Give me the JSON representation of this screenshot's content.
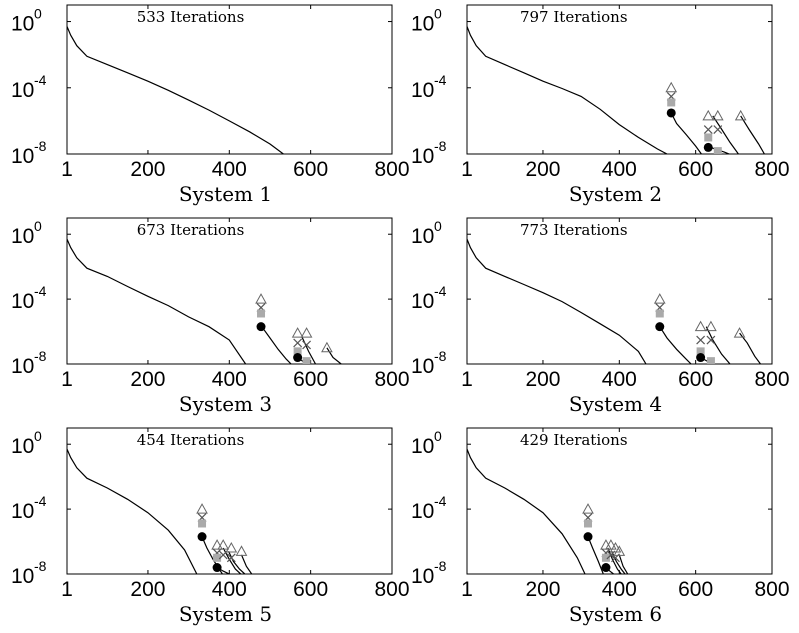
{
  "chart_data": [
    {
      "type": "line",
      "title": "533 Iterations",
      "xlabel": "System 1",
      "xlim": [
        1,
        800
      ],
      "xticks": [
        1,
        200,
        400,
        600,
        800
      ],
      "yscale": "log",
      "ylim": [
        1e-08,
        10
      ],
      "yticks": [
        {
          "base": "10",
          "exp": "0",
          "value": 1
        },
        {
          "base": "10",
          "exp": "-4",
          "value": 0.0001
        },
        {
          "base": "10",
          "exp": "-8",
          "value": 1e-08
        }
      ],
      "series": [
        {
          "x": [
            1,
            10,
            25,
            50,
            100,
            150,
            200,
            250,
            300,
            350,
            400,
            450,
            500,
            533
          ],
          "y": [
            0.5,
            0.15,
            0.035,
            0.008,
            0.0025,
            0.0008,
            0.00025,
            7e-05,
            1.8e-05,
            4.5e-06,
            1e-06,
            2.2e-07,
            4e-08,
            1e-08
          ]
        }
      ],
      "markers": []
    },
    {
      "type": "line",
      "title": "797 Iterations",
      "xlabel": "System 2",
      "xlim": [
        1,
        800
      ],
      "xticks": [
        1,
        200,
        400,
        600,
        800
      ],
      "yscale": "log",
      "ylim": [
        1e-08,
        10
      ],
      "yticks": [
        {
          "base": "10",
          "exp": "0",
          "value": 1
        },
        {
          "base": "10",
          "exp": "-4",
          "value": 0.0001
        },
        {
          "base": "10",
          "exp": "-8",
          "value": 1e-08
        }
      ],
      "series": [
        {
          "x": [
            1,
            10,
            25,
            50,
            100,
            150,
            200,
            250,
            300,
            350,
            400,
            450,
            500,
            525
          ],
          "y": [
            0.5,
            0.15,
            0.035,
            0.008,
            0.0025,
            0.0008,
            0.00025,
            9e-05,
            3e-05,
            5e-06,
            6e-07,
            1e-07,
            2e-08,
            1e-08
          ]
        },
        {
          "x": [
            536,
            550,
            575,
            600,
            615
          ],
          "y": [
            3e-06,
            7e-07,
            1.5e-07,
            3e-08,
            1e-08
          ]
        },
        {
          "x": [
            633,
            650,
            675,
            688
          ],
          "y": [
            3e-08,
            2e-08,
            1.3e-08,
            1e-08
          ]
        },
        {
          "x": [
            645,
            665,
            690,
            712
          ],
          "y": [
            2e-06,
            4e-07,
            5e-08,
            1e-08
          ]
        },
        {
          "x": [
            718,
            740,
            765,
            780
          ],
          "y": [
            2e-06,
            3e-07,
            4e-08,
            1e-08
          ]
        }
      ],
      "markers": [
        {
          "x": 536,
          "triangle": 0.0001,
          "cross": 3e-05,
          "square": 1.3e-05,
          "dot": 3e-06
        },
        {
          "x": 633,
          "triangle": 2e-06,
          "cross": 3e-07,
          "square": 1e-07,
          "dot": 2.5e-08
        },
        {
          "x": 658,
          "triangle": 2e-06,
          "cross": 3e-07,
          "square": 1.5e-08
        },
        {
          "x": 718,
          "triangle": 2e-06
        }
      ]
    },
    {
      "type": "line",
      "title": "673 Iterations",
      "xlabel": "System 3",
      "xlim": [
        1,
        800
      ],
      "xticks": [
        1,
        200,
        400,
        600,
        800
      ],
      "yscale": "log",
      "ylim": [
        1e-08,
        10
      ],
      "yticks": [
        {
          "base": "10",
          "exp": "0",
          "value": 1
        },
        {
          "base": "10",
          "exp": "-4",
          "value": 0.0001
        },
        {
          "base": "10",
          "exp": "-8",
          "value": 1e-08
        }
      ],
      "series": [
        {
          "x": [
            1,
            10,
            25,
            50,
            100,
            150,
            200,
            250,
            300,
            350,
            400,
            440
          ],
          "y": [
            0.5,
            0.15,
            0.035,
            0.008,
            0.0025,
            0.0006,
            0.00015,
            4e-05,
            8e-06,
            2e-06,
            3e-07,
            1e-08
          ]
        },
        {
          "x": [
            480,
            500,
            520,
            540,
            552
          ],
          "y": [
            2e-06,
            4e-07,
            8e-08,
            2e-08,
            1e-08
          ]
        },
        {
          "x": [
            568,
            580,
            598
          ],
          "y": [
            2.5e-08,
            1.5e-08,
            1e-08
          ]
        },
        {
          "x": [
            578,
            595,
            612
          ],
          "y": [
            5e-07,
            6e-08,
            1e-08
          ]
        },
        {
          "x": [
            640,
            655,
            675
          ],
          "y": [
            1e-07,
            2.5e-08,
            1e-08
          ]
        }
      ],
      "markers": [
        {
          "x": 478,
          "triangle": 0.0001,
          "cross": 3e-05,
          "square": 1.3e-05,
          "dot": 2e-06
        },
        {
          "x": 568,
          "triangle": 8e-07,
          "cross": 2e-07,
          "square": 6e-08,
          "dot": 2.5e-08
        },
        {
          "x": 590,
          "triangle": 8e-07,
          "cross": 1.5e-07,
          "square": 1.5e-08
        },
        {
          "x": 640,
          "triangle": 1e-07
        }
      ]
    },
    {
      "type": "line",
      "title": "773 Iterations",
      "xlabel": "System 4",
      "xlim": [
        1,
        800
      ],
      "xticks": [
        1,
        200,
        400,
        600,
        800
      ],
      "yscale": "log",
      "ylim": [
        1e-08,
        10
      ],
      "yticks": [
        {
          "base": "10",
          "exp": "0",
          "value": 1
        },
        {
          "base": "10",
          "exp": "-4",
          "value": 0.0001
        },
        {
          "base": "10",
          "exp": "-8",
          "value": 1e-08
        }
      ],
      "series": [
        {
          "x": [
            1,
            10,
            25,
            50,
            100,
            150,
            200,
            250,
            300,
            350,
            400,
            450,
            470
          ],
          "y": [
            0.5,
            0.15,
            0.035,
            0.008,
            0.0025,
            0.0008,
            0.00025,
            7e-05,
            1.5e-05,
            3e-06,
            6e-07,
            6e-08,
            1e-08
          ]
        },
        {
          "x": [
            506,
            525,
            550,
            575,
            588
          ],
          "y": [
            2e-06,
            4e-07,
            8e-08,
            2e-08,
            1e-08
          ]
        },
        {
          "x": [
            613,
            630,
            648
          ],
          "y": [
            2.5e-08,
            1.5e-08,
            1e-08
          ]
        },
        {
          "x": [
            628,
            645,
            668,
            690
          ],
          "y": [
            2e-06,
            3e-07,
            4e-08,
            1e-08
          ]
        },
        {
          "x": [
            715,
            735,
            755,
            770
          ],
          "y": [
            8e-07,
            2e-07,
            3e-08,
            1e-08
          ]
        }
      ],
      "markers": [
        {
          "x": 506,
          "triangle": 0.0001,
          "cross": 3e-05,
          "square": 1.3e-05,
          "dot": 2e-06
        },
        {
          "x": 613,
          "triangle": 2e-06,
          "cross": 3e-07,
          "square": 6e-08,
          "dot": 2.5e-08
        },
        {
          "x": 640,
          "triangle": 2e-06,
          "cross": 3e-07,
          "square": 1.5e-08
        },
        {
          "x": 715,
          "triangle": 8e-07
        }
      ]
    },
    {
      "type": "line",
      "title": "454 Iterations",
      "xlabel": "System 5",
      "xlim": [
        1,
        800
      ],
      "xticks": [
        1,
        200,
        400,
        600,
        800
      ],
      "yscale": "log",
      "ylim": [
        1e-08,
        10
      ],
      "yticks": [
        {
          "base": "10",
          "exp": "0",
          "value": 1
        },
        {
          "base": "10",
          "exp": "-4",
          "value": 0.0001
        },
        {
          "base": "10",
          "exp": "-8",
          "value": 1e-08
        }
      ],
      "series": [
        {
          "x": [
            1,
            10,
            25,
            50,
            100,
            150,
            200,
            250,
            290,
            320
          ],
          "y": [
            0.5,
            0.15,
            0.035,
            0.008,
            0.002,
            0.0004,
            6e-05,
            5e-06,
            3e-07,
            1e-08
          ]
        },
        {
          "x": [
            333,
            345,
            360,
            375,
            383
          ],
          "y": [
            2e-06,
            4e-07,
            8e-08,
            2e-08,
            1e-08
          ]
        },
        {
          "x": [
            370,
            385,
            400
          ],
          "y": [
            2.5e-08,
            1.5e-08,
            1e-08
          ]
        },
        {
          "x": [
            385,
            400,
            415,
            428
          ],
          "y": [
            4e-07,
            8e-08,
            2e-08,
            1e-08
          ]
        },
        {
          "x": [
            398,
            410,
            425,
            438
          ],
          "y": [
            2.5e-07,
            6e-08,
            2e-08,
            1e-08
          ]
        },
        {
          "x": [
            430,
            442,
            455
          ],
          "y": [
            1.5e-07,
            3e-08,
            1e-08
          ]
        }
      ],
      "markers": [
        {
          "x": 333,
          "triangle": 0.0001,
          "cross": 3e-05,
          "square": 1.3e-05,
          "dot": 2e-06
        },
        {
          "x": 370,
          "triangle": 6e-07,
          "cross": 2e-07,
          "square": 1e-07,
          "dot": 2.5e-08
        },
        {
          "x": 385,
          "triangle": 6e-07,
          "cross": 1.5e-07
        },
        {
          "x": 405,
          "triangle": 4e-07,
          "cross": 1e-07
        },
        {
          "x": 430,
          "triangle": 2.5e-07
        }
      ]
    },
    {
      "type": "line",
      "title": "429 Iterations",
      "xlabel": "System 6",
      "xlim": [
        1,
        800
      ],
      "xticks": [
        1,
        200,
        400,
        600,
        800
      ],
      "yscale": "log",
      "ylim": [
        1e-08,
        10
      ],
      "yticks": [
        {
          "base": "10",
          "exp": "0",
          "value": 1
        },
        {
          "base": "10",
          "exp": "-4",
          "value": 0.0001
        },
        {
          "base": "10",
          "exp": "-8",
          "value": 1e-08
        }
      ],
      "series": [
        {
          "x": [
            1,
            10,
            25,
            50,
            100,
            150,
            200,
            250,
            290,
            310
          ],
          "y": [
            0.5,
            0.15,
            0.035,
            0.008,
            0.002,
            0.0004,
            6e-05,
            3e-06,
            1e-07,
            1e-08
          ]
        },
        {
          "x": [
            318,
            330,
            345,
            358
          ],
          "y": [
            2e-06,
            4e-07,
            6e-08,
            1e-08
          ]
        },
        {
          "x": [
            365,
            375,
            385
          ],
          "y": [
            2.5e-08,
            1.5e-08,
            1e-08
          ]
        },
        {
          "x": [
            370,
            382,
            395,
            405
          ],
          "y": [
            4e-07,
            8e-08,
            2e-08,
            1e-08
          ]
        },
        {
          "x": [
            380,
            392,
            405,
            415
          ],
          "y": [
            2.5e-07,
            6e-08,
            2e-08,
            1e-08
          ]
        },
        {
          "x": [
            400,
            410,
            422
          ],
          "y": [
            1.5e-07,
            3e-08,
            1e-08
          ]
        }
      ],
      "markers": [
        {
          "x": 318,
          "triangle": 0.0001,
          "cross": 3e-05,
          "square": 1.3e-05,
          "dot": 2e-06
        },
        {
          "x": 365,
          "triangle": 6e-07,
          "cross": 2e-07,
          "square": 1e-07,
          "dot": 2.5e-08
        },
        {
          "x": 378,
          "triangle": 6e-07,
          "cross": 1.5e-07
        },
        {
          "x": 390,
          "triangle": 4e-07,
          "cross": 1e-07
        },
        {
          "x": 400,
          "triangle": 2.5e-07
        }
      ]
    }
  ]
}
